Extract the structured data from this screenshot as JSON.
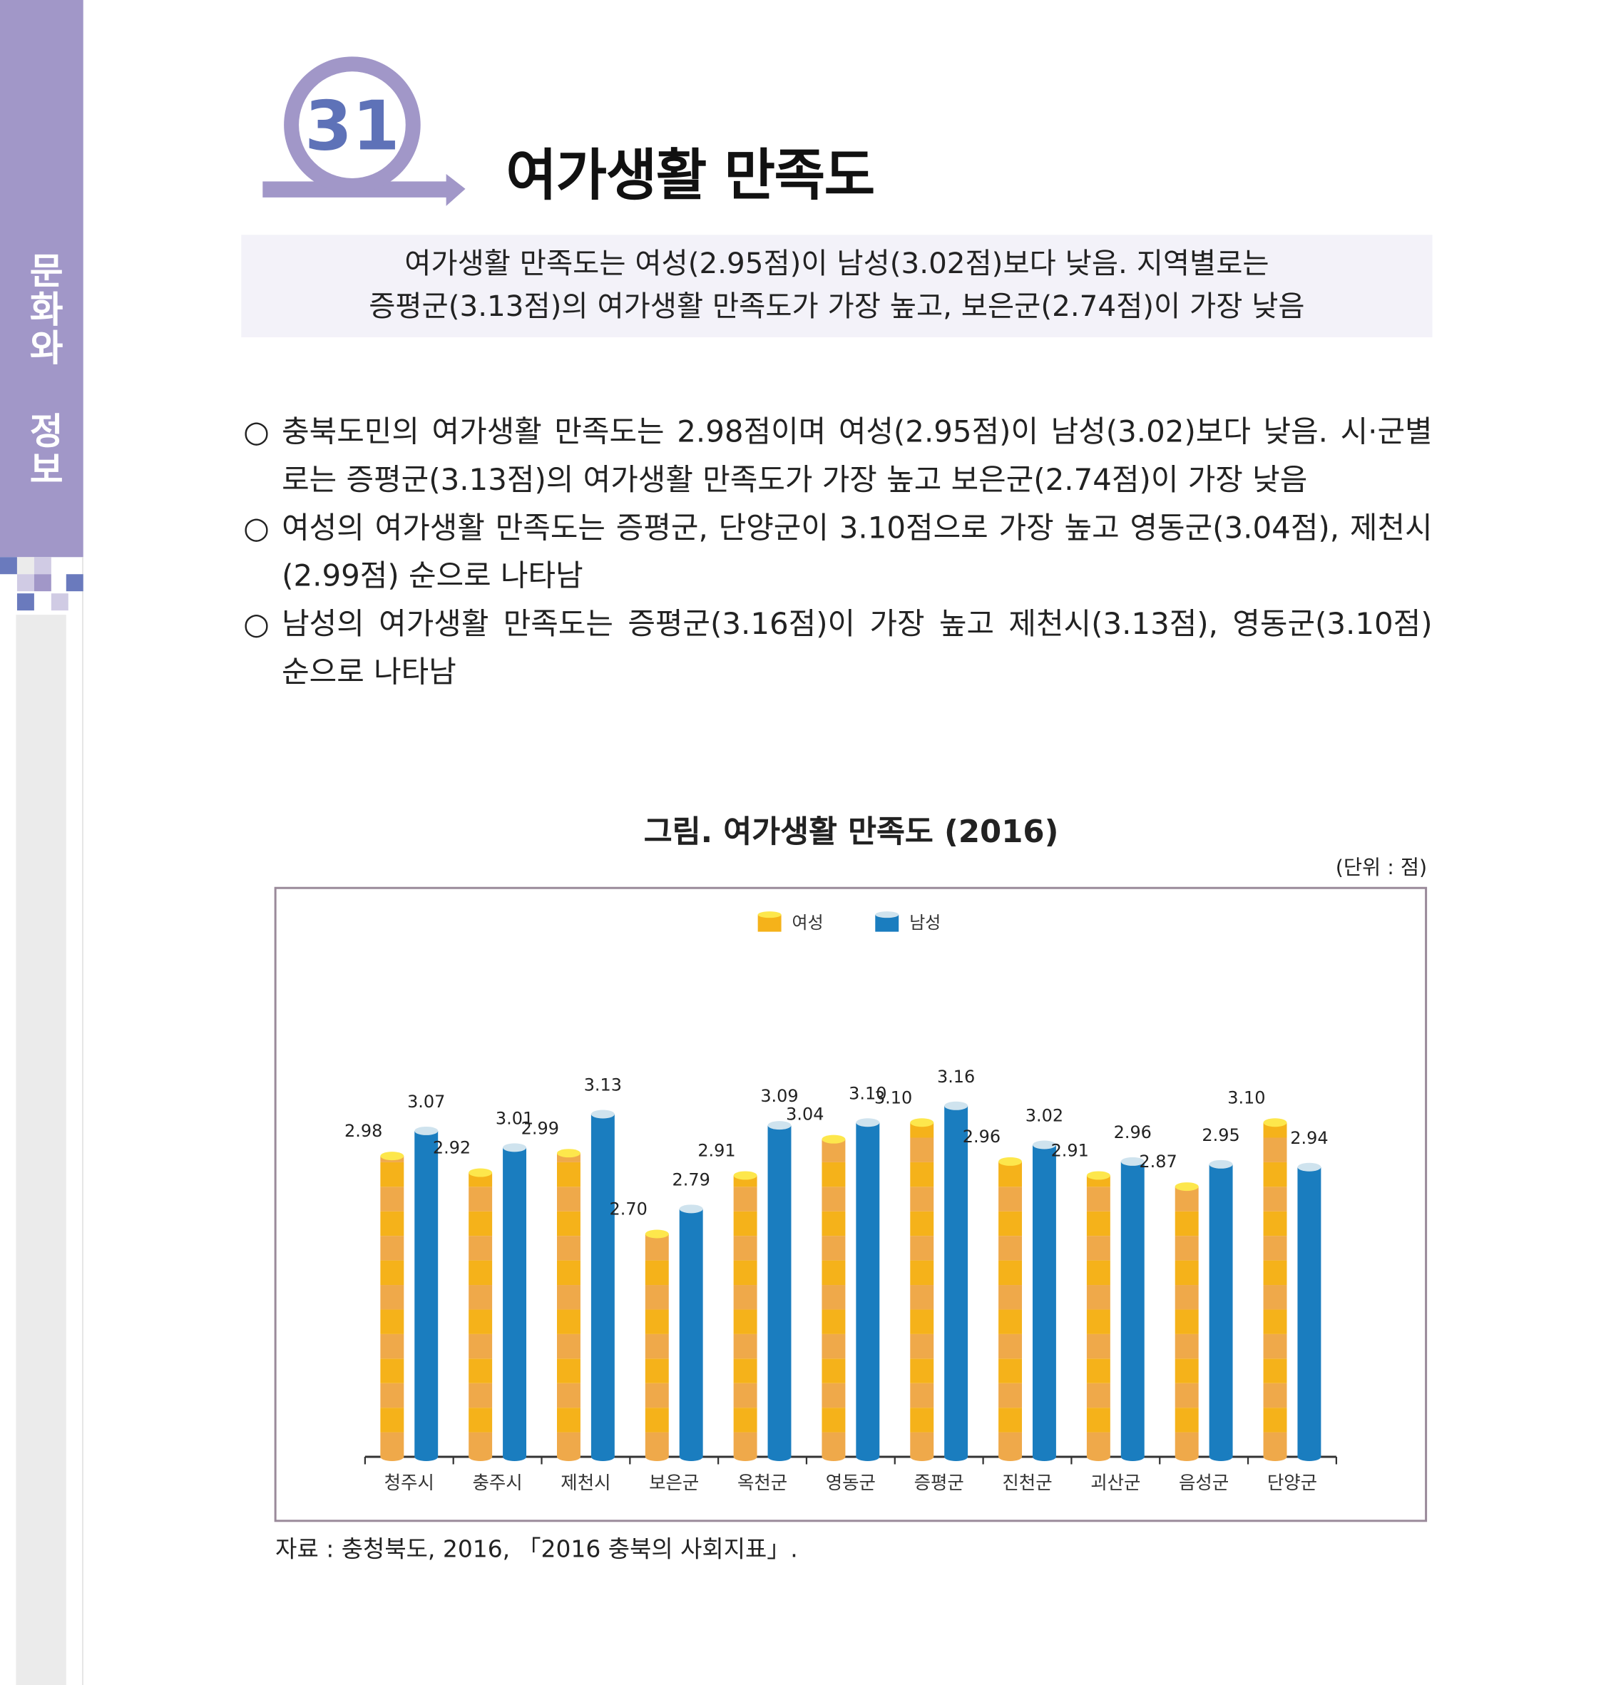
{
  "sidebar": {
    "section_label": "문화와 정보",
    "color": "#a197c8"
  },
  "header": {
    "number": "31",
    "title": "여가생활 만족도"
  },
  "summary": {
    "lines": [
      "여가생활 만족도는 여성(2.95점)이 남성(3.02점)보다 낮음. 지역별로는",
      "증평군(3.13점)의 여가생활 만족도가 가장 높고, 보은군(2.74점)이 가장 낮음"
    ]
  },
  "bullets": [
    {
      "marker": "○",
      "text": "충북도민의 여가생활 만족도는 2.98점이며 여성(2.95점)이 남성(3.02)보다 낮음. 시·군별로는 증평군(3.13점)의 여가생활 만족도가 가장 높고 보은군(2.74점)이 가장 낮음"
    },
    {
      "marker": "○",
      "text": "여성의 여가생활 만족도는 증평군, 단양군이 3.10점으로 가장 높고 영동군(3.04점), 제천시(2.99점) 순으로 나타남"
    },
    {
      "marker": "○",
      "text": "남성의 여가생활 만족도는 증평군(3.16점)이 가장 높고 제천시(3.13점), 영동군(3.10점) 순으로 나타남"
    }
  ],
  "chart_data": {
    "type": "bar",
    "title": "그림. 여가생활 만족도 (2016)",
    "unit": "(단위 : 점)",
    "categories": [
      "청주시",
      "충주시",
      "제천시",
      "보은군",
      "옥천군",
      "영동군",
      "증평군",
      "진천군",
      "괴산군",
      "음성군",
      "단양군"
    ],
    "series": [
      {
        "name": "여성",
        "color": "#f5b21a",
        "values": [
          2.98,
          2.92,
          2.99,
          2.7,
          2.91,
          3.04,
          3.1,
          2.96,
          2.91,
          2.87,
          3.1
        ]
      },
      {
        "name": "남성",
        "color": "#1a7dbf",
        "values": [
          3.07,
          3.01,
          3.13,
          2.79,
          3.09,
          3.1,
          3.16,
          3.02,
          2.96,
          2.95,
          2.94
        ]
      }
    ],
    "ylim": [
      1.9,
      3.3
    ],
    "legend": "top-center",
    "grid": false
  },
  "source": "자료 : 충청북도, 2016, 「2016 충북의 사회지표」."
}
